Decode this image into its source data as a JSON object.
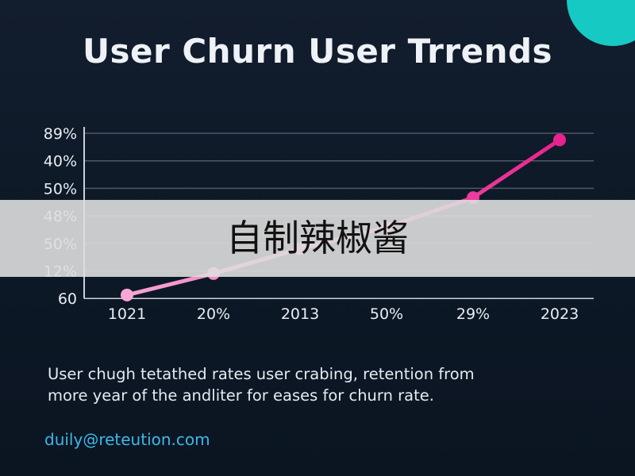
{
  "title": "User Churn User Trrends",
  "chart_data": {
    "type": "line",
    "title": "User Churn User Trrends",
    "categories": [
      "1021",
      "20%",
      "2013",
      "50%",
      "29%",
      "2023"
    ],
    "y_tick_labels": [
      "89%",
      "40%",
      "50%",
      "48%",
      "50%",
      "12%",
      "60"
    ],
    "series": [
      {
        "values": [
          0.2,
          1.5,
          3.0,
          4.3,
          6.1,
          9.6
        ],
        "point_labels": [
          "1021",
          "20%",
          "2013",
          "50%",
          "29%",
          "2023"
        ]
      }
    ],
    "ylim": [
      0,
      10
    ],
    "grid": true,
    "legend": "none",
    "colors": {
      "line_start": "#f7a6d5",
      "line_end": "#e8228e",
      "grid": "#4f5866",
      "axis": "#c9d0d9"
    }
  },
  "caption": {
    "line1": "User chugh tetathed rates user crabing, retention from",
    "line2": "more year of the andliter for eases for churn rate."
  },
  "email": "duily@reteution.com",
  "watermark": "自制辣椒酱",
  "colors": {
    "background": "#0f1a2a",
    "accent_circle": "#16c9c3",
    "email": "#3fb7e8"
  }
}
